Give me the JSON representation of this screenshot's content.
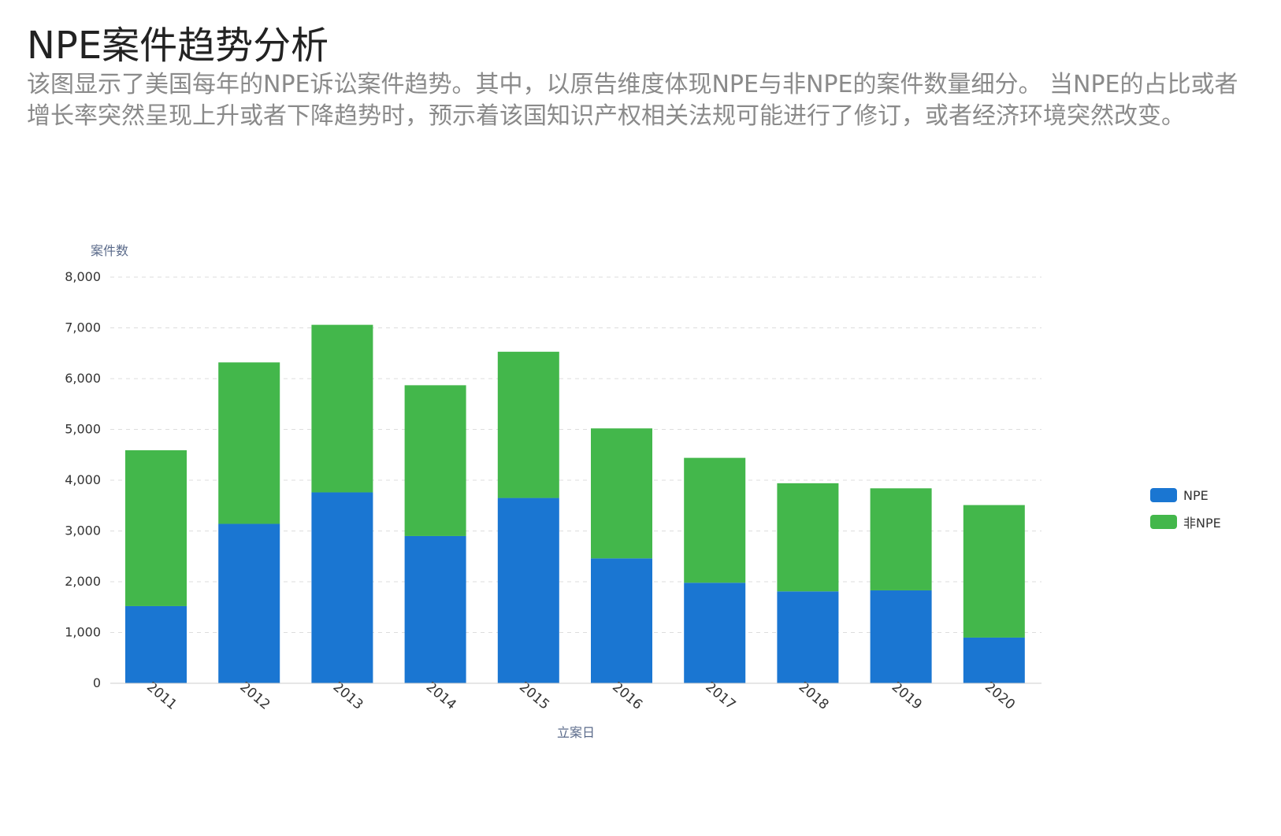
{
  "header": {
    "title": "NPE案件趋势分析",
    "description": "该图显示了美国每年的NPE诉讼案件趋势。其中，以原告维度体现NPE与非NPE的案件数量细分。 当NPE的占比或者增长率突然呈现上升或者下降趋势时，预示着该国知识产权相关法规可能进行了修订，或者经济环境突然改变。"
  },
  "colors": {
    "npe": "#1a76d2",
    "non_npe": "#43b74b",
    "grid": "#dddddd",
    "axis_text": "#333333",
    "axis_title": "#5a6a8a"
  },
  "chart_data": {
    "type": "bar",
    "stacked": true,
    "categories": [
      "2011",
      "2012",
      "2013",
      "2014",
      "2015",
      "2016",
      "2017",
      "2018",
      "2019",
      "2020"
    ],
    "series": [
      {
        "name": "NPE",
        "values": [
          1520,
          3140,
          3760,
          2900,
          3650,
          2460,
          1980,
          1810,
          1830,
          900
        ]
      },
      {
        "name": "非NPE",
        "values": [
          3070,
          3180,
          3300,
          2970,
          2880,
          2560,
          2460,
          2130,
          2010,
          2610
        ]
      }
    ],
    "xlabel": "立案日",
    "ylabel": "案件数",
    "ylim": [
      0,
      8000
    ],
    "yticks": [
      0,
      1000,
      2000,
      3000,
      4000,
      5000,
      6000,
      7000,
      8000
    ],
    "ytick_labels": [
      "0",
      "1,000",
      "2,000",
      "3,000",
      "4,000",
      "5,000",
      "6,000",
      "7,000",
      "8,000"
    ],
    "grid": true,
    "legend_position": "right"
  }
}
